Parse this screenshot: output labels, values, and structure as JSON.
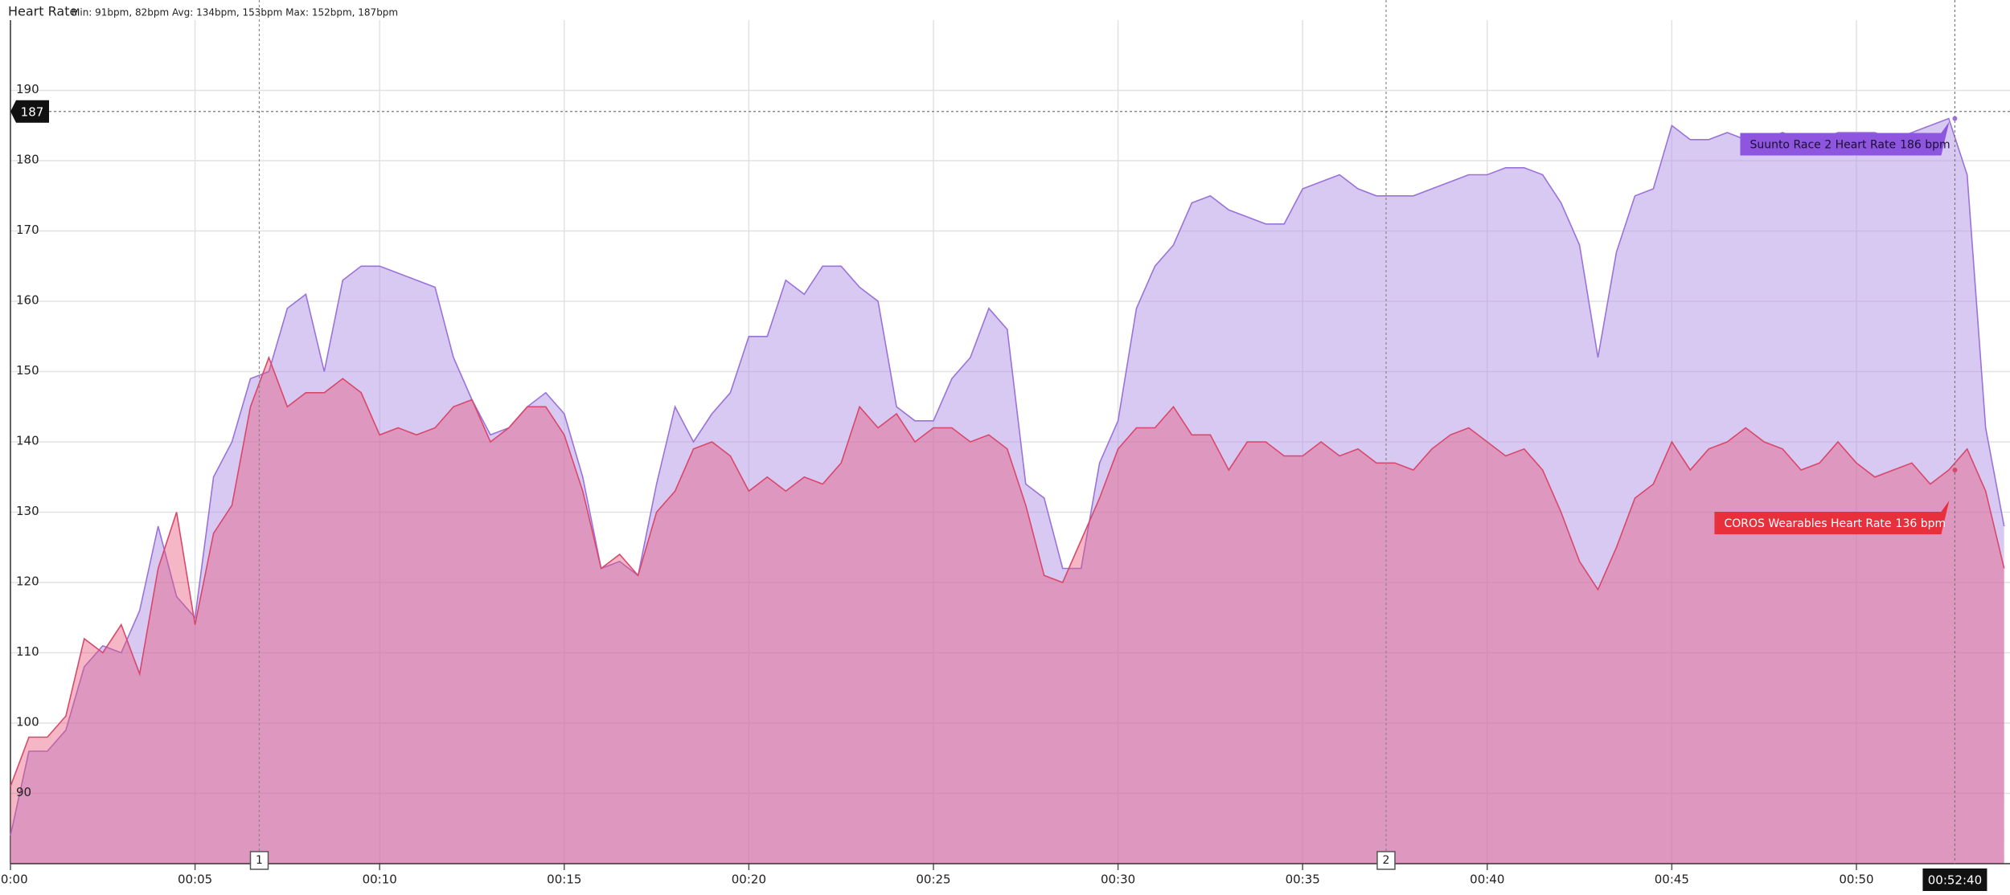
{
  "chart_data": {
    "type": "area",
    "title": "Heart Rate",
    "subtitle": "Min: 91bpm, 82bpm Avg: 134bpm, 153bpm Max: 152bpm, 187bpm",
    "x": [
      0,
      0.5,
      1,
      1.5,
      2,
      2.5,
      3,
      3.5,
      4,
      4.5,
      5,
      5.5,
      6,
      6.5,
      7,
      7.5,
      8,
      8.5,
      9,
      9.5,
      10,
      10.5,
      11,
      11.5,
      12,
      12.5,
      13,
      13.5,
      14,
      14.5,
      15,
      15.5,
      16,
      16.5,
      17,
      17.5,
      18,
      18.5,
      19,
      19.5,
      20,
      20.5,
      21,
      21.5,
      22,
      22.5,
      23,
      23.5,
      24,
      24.5,
      25,
      25.5,
      26,
      26.5,
      27,
      27.5,
      28,
      28.5,
      29,
      29.5,
      30,
      30.5,
      31,
      31.5,
      32,
      32.5,
      33,
      33.5,
      34,
      34.5,
      35,
      35.5,
      36,
      36.5,
      37,
      37.5,
      38,
      38.5,
      39,
      39.5,
      40,
      40.5,
      41,
      41.5,
      42,
      42.5,
      43,
      43.5,
      44,
      44.5,
      45,
      45.5,
      46,
      46.5,
      47,
      47.5,
      48,
      48.5,
      49,
      49.5,
      50,
      50.5,
      51,
      51.5,
      52,
      52.5,
      53,
      53.5,
      54
    ],
    "series": [
      {
        "name": "Suunto Race 2 Heart Rate",
        "color": "#9b72d8",
        "tooltip": "186 bpm",
        "tooltip_color": "#8e55df",
        "values": [
          84,
          96,
          96,
          99,
          108,
          111,
          110,
          116,
          128,
          118,
          115,
          135,
          140,
          149,
          150,
          159,
          161,
          150,
          163,
          165,
          165,
          164,
          163,
          162,
          152,
          146,
          141,
          142,
          145,
          147,
          144,
          135,
          122,
          123,
          121,
          134,
          145,
          140,
          144,
          147,
          155,
          155,
          163,
          161,
          165,
          165,
          162,
          160,
          145,
          143,
          143,
          149,
          152,
          159,
          156,
          134,
          132,
          122,
          122,
          137,
          143,
          159,
          165,
          168,
          174,
          175,
          173,
          172,
          171,
          171,
          176,
          177,
          178,
          176,
          175,
          175,
          175,
          176,
          177,
          178,
          178,
          179,
          179,
          178,
          174,
          168,
          152,
          167,
          175,
          176,
          185,
          183,
          183,
          184,
          183,
          183,
          184,
          183,
          183,
          184,
          184,
          184,
          183,
          184,
          185,
          186,
          178,
          142,
          128
        ]
      },
      {
        "name": "COROS Wearables Heart Rate",
        "color": "#d9486b",
        "tooltip": "136 bpm",
        "tooltip_color": "#e8303c",
        "values": [
          91,
          98,
          98,
          101,
          112,
          110,
          114,
          107,
          122,
          130,
          114,
          127,
          131,
          145,
          152,
          145,
          147,
          147,
          149,
          147,
          141,
          142,
          141,
          142,
          145,
          146,
          140,
          142,
          145,
          145,
          141,
          133,
          122,
          124,
          121,
          130,
          133,
          139,
          140,
          138,
          133,
          135,
          133,
          135,
          134,
          137,
          145,
          142,
          144,
          140,
          142,
          142,
          140,
          141,
          139,
          131,
          121,
          120,
          126,
          132,
          139,
          142,
          142,
          145,
          141,
          141,
          136,
          140,
          140,
          138,
          138,
          140,
          138,
          139,
          137,
          137,
          136,
          139,
          141,
          142,
          140,
          138,
          139,
          136,
          130,
          123,
          119,
          125,
          132,
          134,
          140,
          136,
          139,
          140,
          142,
          140,
          139,
          136,
          137,
          140,
          137,
          135,
          136,
          137,
          134,
          136,
          139,
          133,
          122
        ]
      }
    ],
    "xlim": [
      0,
      54.16
    ],
    "ylim": [
      80,
      200
    ],
    "xticks": [
      {
        "value": 0,
        "label": "00:00"
      },
      {
        "value": 5,
        "label": "00:05"
      },
      {
        "value": 10,
        "label": "00:10"
      },
      {
        "value": 15,
        "label": "00:15"
      },
      {
        "value": 20,
        "label": "00:20"
      },
      {
        "value": 25,
        "label": "00:25"
      },
      {
        "value": 30,
        "label": "00:30"
      },
      {
        "value": 35,
        "label": "00:35"
      },
      {
        "value": 40,
        "label": "00:40"
      },
      {
        "value": 45,
        "label": "00:45"
      },
      {
        "value": 50,
        "label": "00:50"
      }
    ],
    "yticks": [
      90,
      100,
      110,
      120,
      130,
      140,
      150,
      160,
      170,
      180,
      190
    ],
    "grid": true,
    "laps": [
      {
        "value": 6.74,
        "label": "1"
      },
      {
        "value": 37.26,
        "label": "2"
      }
    ],
    "cursor": {
      "x": {
        "value": 52.667,
        "label": "00:52:40"
      },
      "y": 187
    }
  }
}
